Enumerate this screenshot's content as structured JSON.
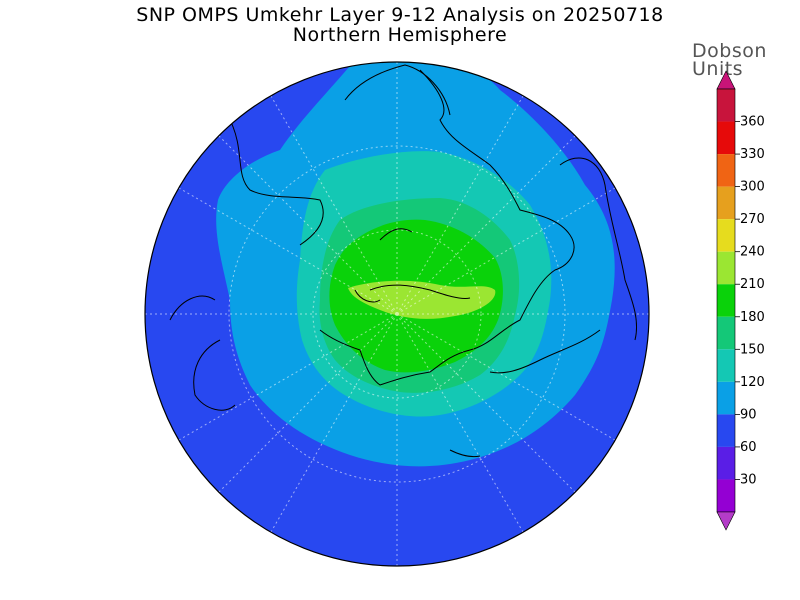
{
  "title": "SNP OMPS Umkehr Layer 9-12 Analysis on 20250718",
  "subtitle": "Northern Hemisphere",
  "units": {
    "line1": "Dobson",
    "line2": "Units"
  },
  "colorbar": {
    "ticks": [
      "30",
      "60",
      "90",
      "120",
      "150",
      "180",
      "210",
      "240",
      "270",
      "300",
      "330",
      "360"
    ],
    "colors": [
      "#9400d3",
      "#5a1ee6",
      "#2848f0",
      "#0aa0e6",
      "#14c8b4",
      "#14c878",
      "#0ad20a",
      "#9be632",
      "#e6dc1e",
      "#e6a01e",
      "#f06414",
      "#e60a0a",
      "#c8143c"
    ],
    "under_color": "#b43cc8",
    "over_color": "#c81478"
  },
  "map": {
    "projection": "polar-stereographic",
    "hemisphere": "north",
    "field_colors": {
      "90-120": "#2848f0",
      "120-150": "#0aa0e6",
      "150-180": "#14c8b4",
      "180-210": "#14c878",
      "210-240": "#0ad20a",
      "240-270": "#9be632"
    }
  }
}
